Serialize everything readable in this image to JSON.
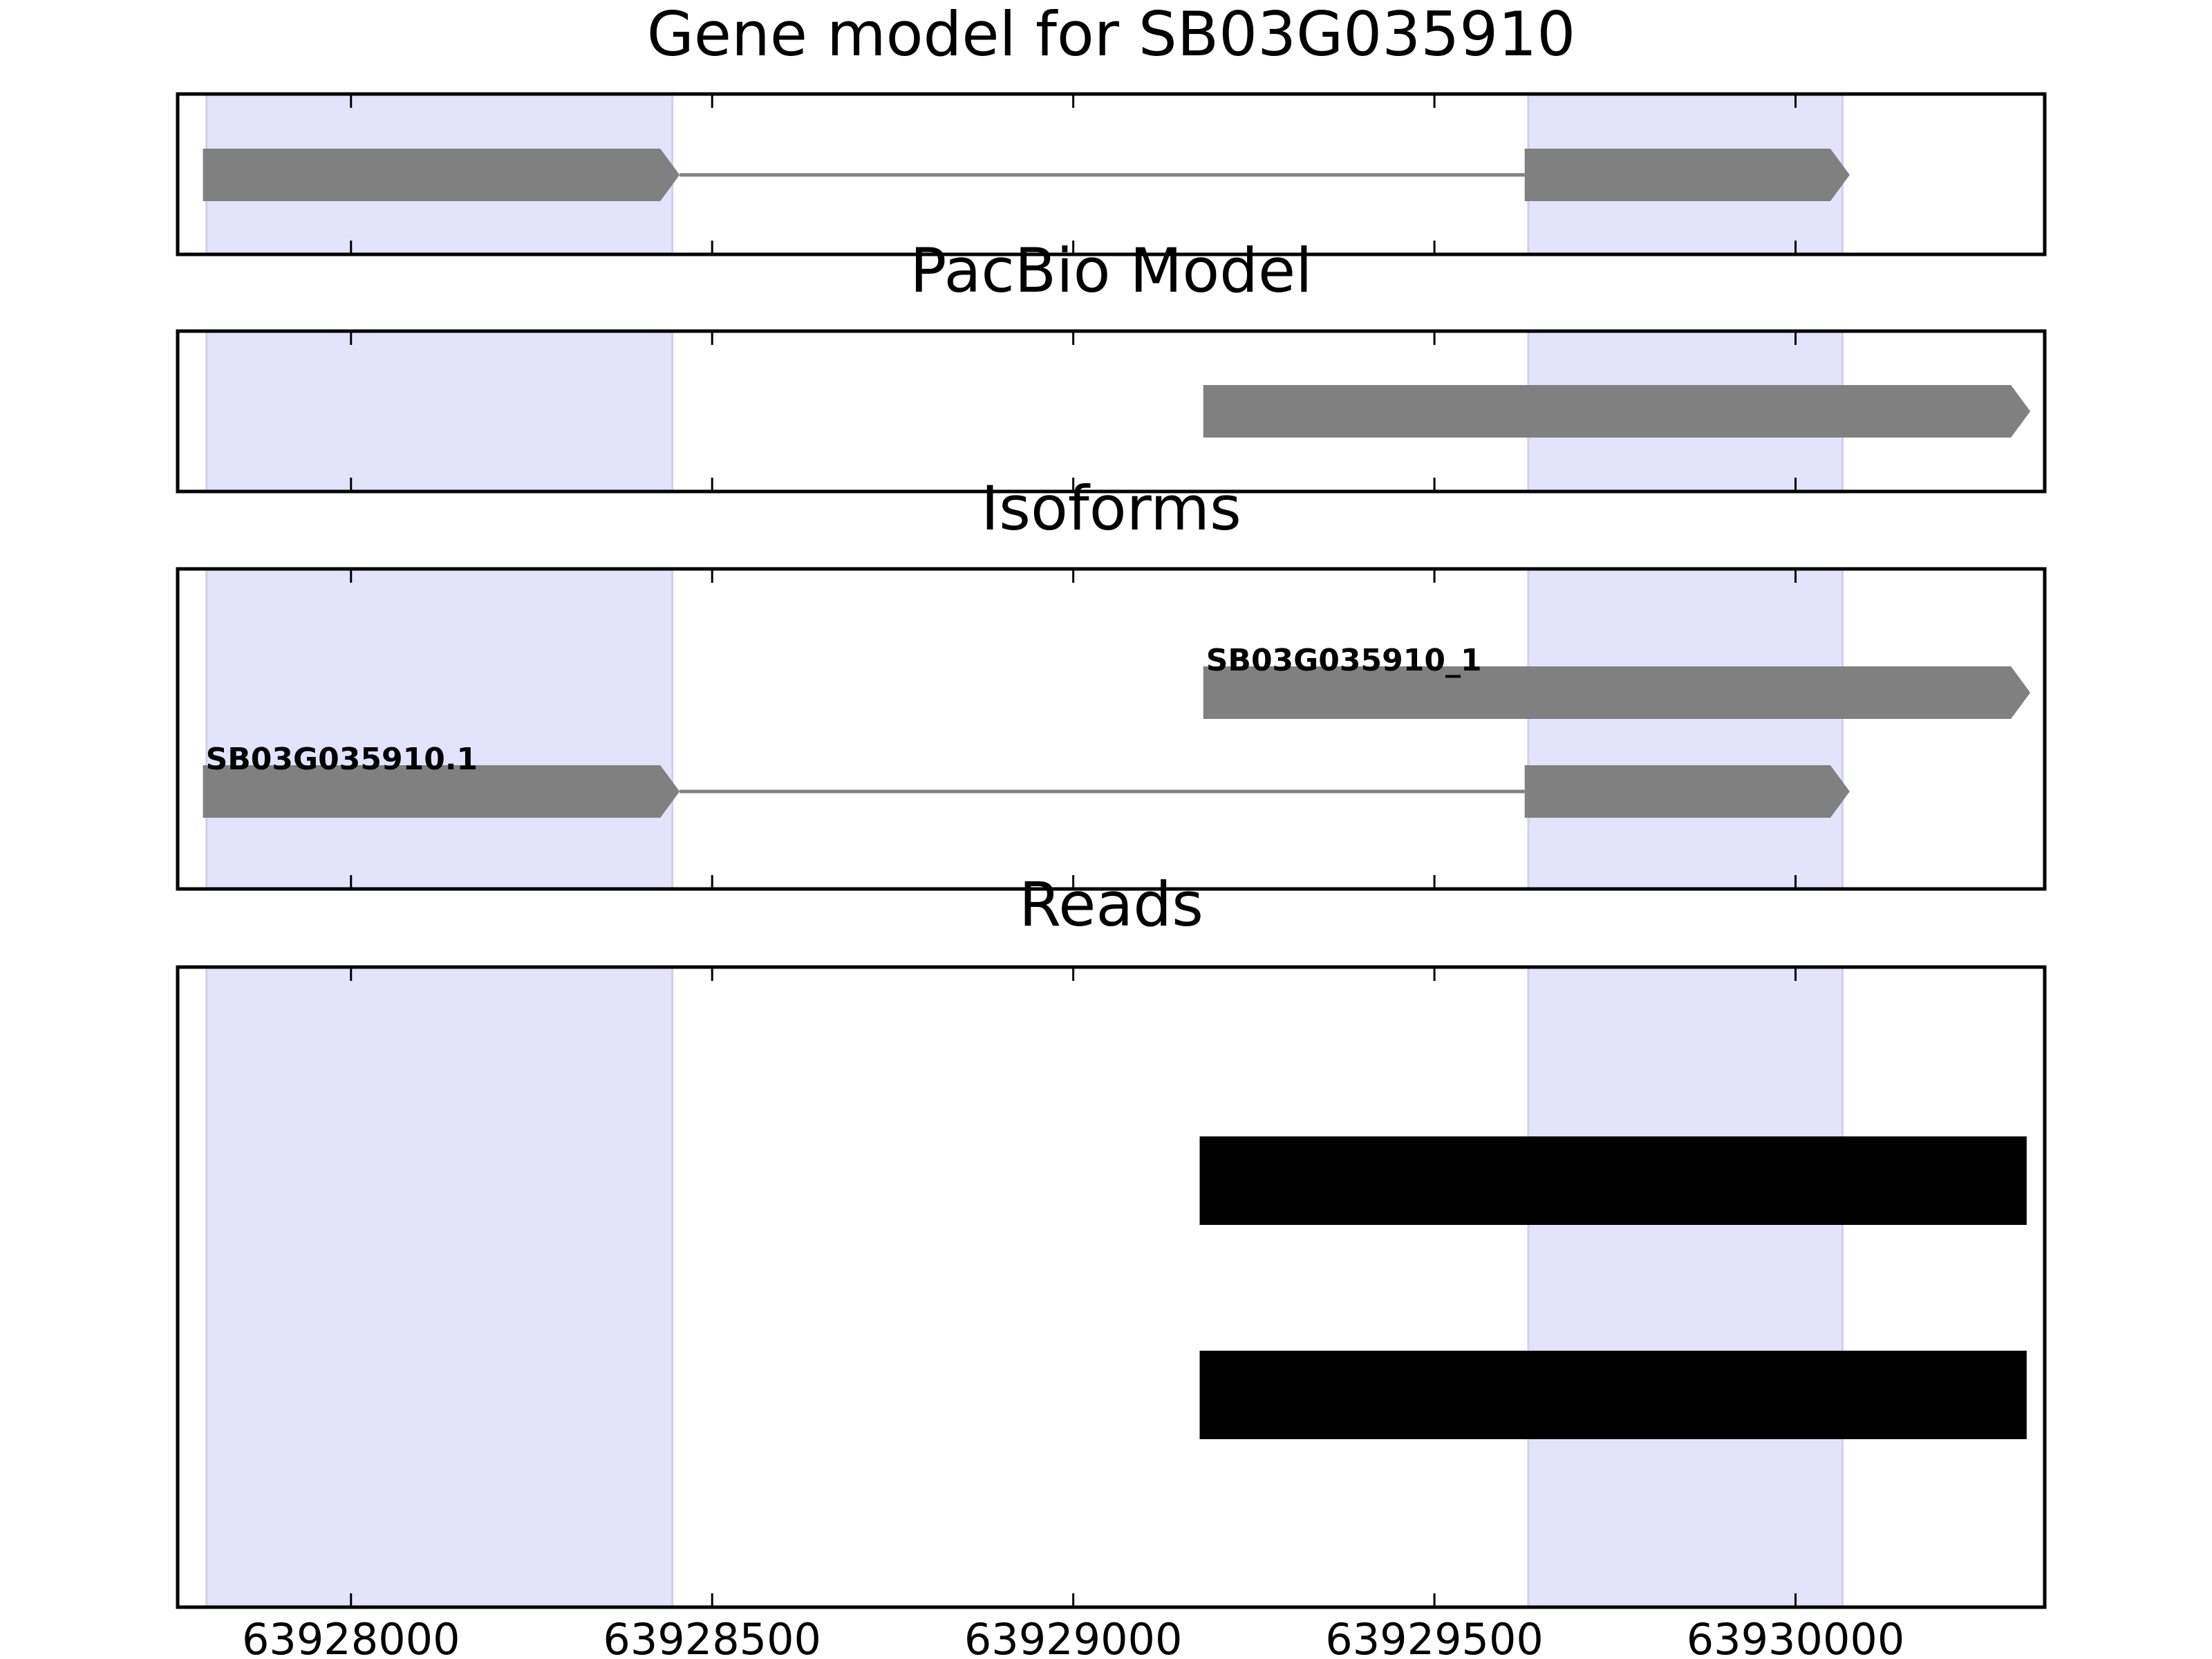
{
  "chart_data": {
    "type": "gene-track",
    "x_ticks": [
      63928000,
      63928500,
      63929000,
      63929500,
      63930000
    ],
    "x_tick_labels": [
      "63928000",
      "63928500",
      "63929000",
      "63929500",
      "63930000"
    ],
    "xlim": [
      63927760,
      63930345
    ],
    "colors": {
      "exon": "#808080",
      "intron": "#808080",
      "highlight": "#e3e3fc",
      "read": "#000000"
    },
    "highlights": [
      {
        "start": 63927800,
        "end": 63928445
      },
      {
        "start": 63929630,
        "end": 63930065
      }
    ],
    "panels": [
      {
        "title": "Gene model for SB03G035910",
        "kind": "model",
        "tracks": [
          {
            "exons": [
              [
                63927795,
                63928455
              ],
              [
                63929625,
                63930075
              ]
            ],
            "strand": "+"
          }
        ]
      },
      {
        "title": "PacBio Model",
        "kind": "model",
        "tracks": [
          {
            "exons": [
              [
                63929180,
                63930325
              ]
            ],
            "strand": "+"
          }
        ]
      },
      {
        "title": "Isoforms",
        "kind": "model",
        "tracks": [
          {
            "label": "SB03G035910_1",
            "exons": [
              [
                63929180,
                63930325
              ]
            ],
            "strand": "+"
          },
          {
            "label": "SB03G035910.1",
            "exons": [
              [
                63927795,
                63928455
              ],
              [
                63929625,
                63930075
              ]
            ],
            "strand": "+"
          }
        ]
      },
      {
        "title": "Reads",
        "kind": "reads",
        "tracks": [
          {
            "exons": [
              [
                63929175,
                63930320
              ]
            ]
          },
          {
            "exons": [
              [
                63929175,
                63930320
              ]
            ]
          }
        ]
      }
    ]
  }
}
